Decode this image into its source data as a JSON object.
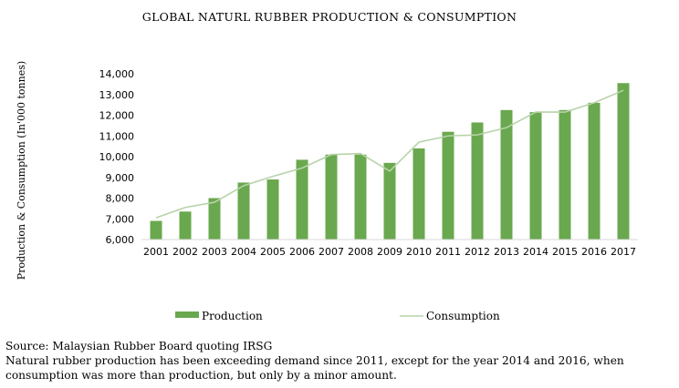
{
  "chart_data": {
    "type": "bar",
    "title": "GLOBAL NATURL RUBBER PRODUCTION & CONSUMPTION",
    "ylabel": "Production & Consumption (In'000 tonnes)",
    "xlabel": "",
    "ylim": [
      6000,
      14000
    ],
    "yticks": [
      "6,000",
      "7,000",
      "8,000",
      "9,000",
      "10,000",
      "11,000",
      "12,000",
      "13,000",
      "14,000"
    ],
    "yticks_values": [
      6000,
      7000,
      8000,
      9000,
      10000,
      11000,
      12000,
      13000,
      14000
    ],
    "categories": [
      "2001",
      "2002",
      "2003",
      "2004",
      "2005",
      "2006",
      "2007",
      "2008",
      "2009",
      "2010",
      "2011",
      "2012",
      "2013",
      "2014",
      "2015",
      "2016",
      "2017"
    ],
    "series": [
      {
        "name": "Production",
        "kind": "bar",
        "color": "#6aa84f",
        "values": [
          6900,
          7350,
          8000,
          8750,
          8900,
          9850,
          10100,
          10100,
          9700,
          10400,
          11200,
          11650,
          12250,
          12150,
          12250,
          12600,
          13550
        ]
      },
      {
        "name": "Consumption",
        "kind": "line",
        "color": "#b7d3a8",
        "values": [
          7050,
          7550,
          7800,
          8600,
          9050,
          9450,
          10100,
          10150,
          9300,
          10700,
          11000,
          11050,
          11400,
          12150,
          12150,
          12600,
          13200
        ]
      }
    ],
    "grid": false,
    "legend": "bottom"
  },
  "source_text": "Source: Malaysian Rubber Board quoting IRSG",
  "caption_text": "Natural rubber production has been exceeding demand since 2011, except for the year 2014 and 2016, when consumption was more than production, but only by a minor amount."
}
